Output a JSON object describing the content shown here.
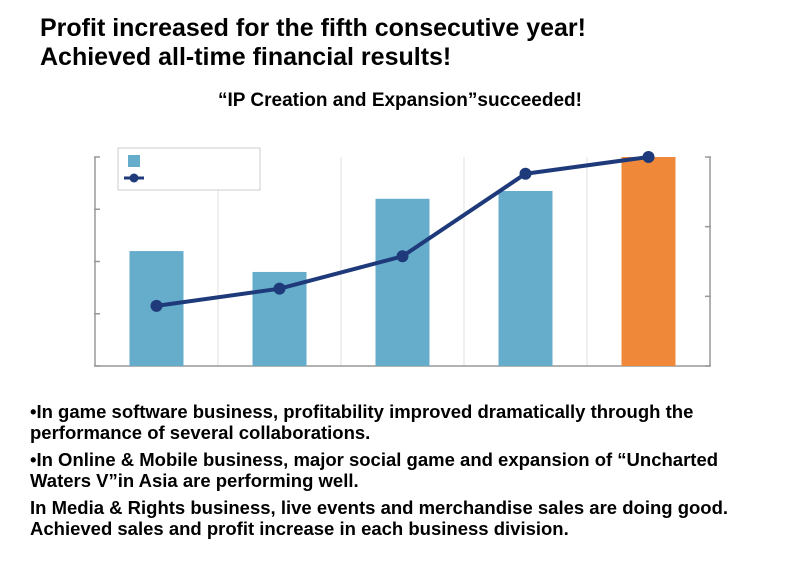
{
  "headline": {
    "line1": "Profit increased for the fifth consecutive year!",
    "line2": "Achieved all-time financial results!"
  },
  "subtitle": "“IP Creation and Expansion”succeeded!",
  "chart_data": {
    "type": "bar+line",
    "categories": [
      "",
      "",
      "",
      "",
      ""
    ],
    "series": [
      {
        "name": "",
        "type": "bar",
        "values": [
          2.2,
          1.8,
          3.2,
          3.35,
          4.0
        ],
        "axis": "left"
      },
      {
        "name": "",
        "type": "line",
        "values": [
          1.15,
          1.48,
          2.1,
          3.68,
          4.0
        ],
        "axis": "left"
      }
    ],
    "ylim": [
      0,
      4
    ],
    "right_ylim": [
      0,
      3
    ],
    "colors": {
      "bar": "#66adcc",
      "bar_highlight": "#f0883a",
      "line": "#1f3a7a",
      "axis": "#999999",
      "grid": "#e0e0e0"
    },
    "highlight_index": 4,
    "legend": {
      "position": "top-left"
    }
  },
  "bullets": [
    "•In game software business, profitability improved dramatically through the performance of several collaborations.",
    "•In Online & Mobile business, major social game and expansion of “Uncharted Waters V”in Asia are performing well.",
    " In Media & Rights business, live events and merchandise sales are doing good. Achieved sales and profit increase in each business division."
  ]
}
